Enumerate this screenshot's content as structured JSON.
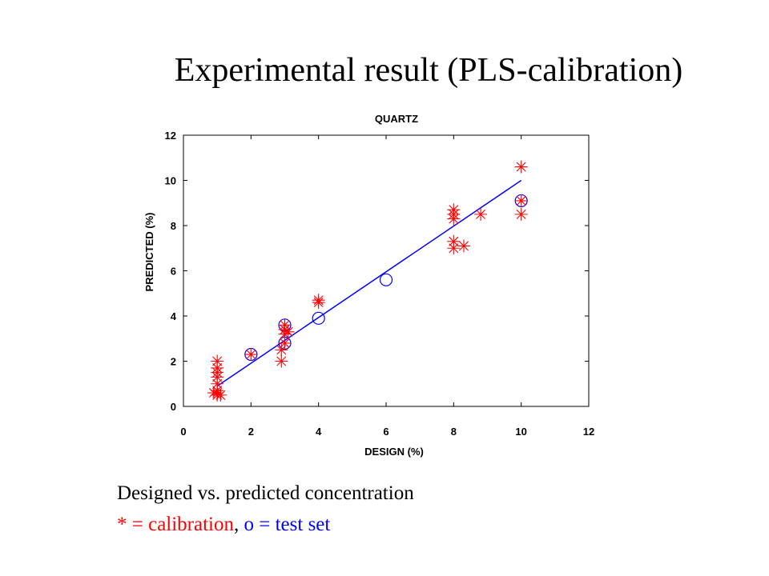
{
  "slide": {
    "title": "Experimental result (PLS-calibration)",
    "caption_line1": "Designed vs. predicted concentration",
    "caption_calibration": "* = calibration",
    "caption_sep": ", ",
    "caption_test": "o = test set"
  },
  "colors": {
    "calibration": "#ff0000",
    "test": "#0000ff",
    "fit_line": "#0000ff",
    "caption_red": "#ff0000",
    "caption_blue": "#0000ff"
  },
  "chart_data": {
    "type": "scatter",
    "title": "QUARTZ",
    "xlabel": "DESIGN (%)",
    "ylabel": "PREDICTED (%)",
    "xlim": [
      0,
      12
    ],
    "ylim": [
      0,
      12
    ],
    "xticks": [
      "0",
      "2",
      "4",
      "6",
      "8",
      "10",
      "12"
    ],
    "yticks": [
      "0",
      "2",
      "4",
      "6",
      "8",
      "10",
      "12"
    ],
    "grid": false,
    "legend": "none",
    "series": [
      {
        "marker": "asterisk",
        "points": [
          [
            1,
            0.5
          ],
          [
            1,
            0.6
          ],
          [
            1,
            0.7
          ],
          [
            1,
            1.0
          ],
          [
            1,
            1.3
          ],
          [
            1,
            1.5
          ],
          [
            1,
            1.7
          ],
          [
            1,
            2.0
          ],
          [
            0.9,
            0.6
          ],
          [
            1.1,
            0.5
          ],
          [
            2,
            2.3
          ],
          [
            2.9,
            2.0
          ],
          [
            2.9,
            2.5
          ],
          [
            3,
            2.8
          ],
          [
            3,
            3.2
          ],
          [
            3,
            3.4
          ],
          [
            3,
            3.6
          ],
          [
            3.1,
            3.3
          ],
          [
            4,
            4.6
          ],
          [
            4,
            4.7
          ],
          [
            8,
            7.0
          ],
          [
            8,
            7.3
          ],
          [
            8,
            8.3
          ],
          [
            8,
            8.5
          ],
          [
            8,
            8.7
          ],
          [
            8.3,
            7.1
          ],
          [
            8.8,
            8.5
          ],
          [
            10,
            8.5
          ],
          [
            10,
            9.1
          ],
          [
            10,
            10.6
          ]
        ]
      },
      {
        "marker": "circle",
        "points": [
          [
            2,
            2.3
          ],
          [
            3,
            2.8
          ],
          [
            3,
            3.6
          ],
          [
            4,
            3.9
          ],
          [
            6,
            5.6
          ],
          [
            10,
            9.1
          ]
        ]
      },
      {
        "marker": "line",
        "points": [
          [
            1,
            0.9
          ],
          [
            10,
            10.0
          ]
        ]
      }
    ]
  }
}
